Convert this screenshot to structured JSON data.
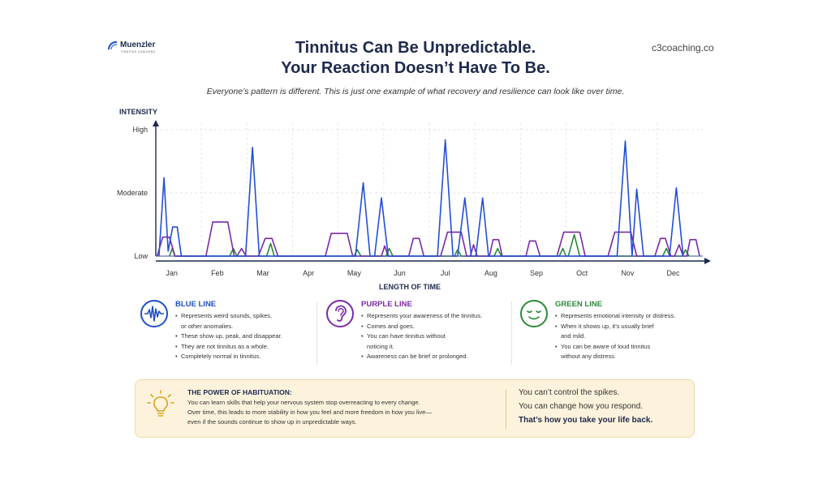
{
  "brand": {
    "name": "Muenzler",
    "tagline": "TINNITUS COACHING",
    "site": "c3coaching.co"
  },
  "header": {
    "title_line1": "Tinnitus Can Be Unpredictable.",
    "title_line2": "Your Reaction Doesn’t Have To Be.",
    "subtitle": "Everyone’s pattern is different. This is just one example of what recovery and resilience can look like over time."
  },
  "chart_data": {
    "type": "line",
    "ylabel": "INTENSITY",
    "xlabel": "LENGTH OF TIME",
    "y_ticks": [
      {
        "label": "High",
        "value": 10
      },
      {
        "label": "Moderate",
        "value": 5
      },
      {
        "label": "Low",
        "value": 0
      }
    ],
    "categories": [
      "Jan",
      "Feb",
      "Mar",
      "Apr",
      "May",
      "Jun",
      "Jul",
      "Aug",
      "Sep",
      "Oct",
      "Nov",
      "Dec"
    ],
    "xlim": [
      0,
      12
    ],
    "ylim": [
      0,
      10
    ],
    "grid": true,
    "series": [
      {
        "name": "BLUE LINE",
        "color": "#2350d4",
        "points": [
          [
            0.07,
            0
          ],
          [
            0.18,
            6.2
          ],
          [
            0.27,
            0.4
          ],
          [
            0.37,
            2.3
          ],
          [
            0.47,
            2.3
          ],
          [
            0.56,
            0
          ],
          [
            1.97,
            0
          ],
          [
            2.12,
            8.6
          ],
          [
            2.27,
            0
          ],
          [
            4.38,
            0
          ],
          [
            4.55,
            5.8
          ],
          [
            4.7,
            0
          ],
          [
            4.8,
            0
          ],
          [
            4.95,
            4.6
          ],
          [
            5.1,
            0
          ],
          [
            6.18,
            0
          ],
          [
            6.35,
            9.2
          ],
          [
            6.52,
            0
          ],
          [
            6.62,
            0
          ],
          [
            6.78,
            4.6
          ],
          [
            6.92,
            0
          ],
          [
            7.02,
            0
          ],
          [
            7.17,
            4.6
          ],
          [
            7.3,
            0
          ],
          [
            10.12,
            0
          ],
          [
            10.3,
            9.1
          ],
          [
            10.45,
            0
          ],
          [
            10.55,
            5.3
          ],
          [
            10.7,
            0
          ],
          [
            11.27,
            0
          ],
          [
            11.42,
            5.4
          ],
          [
            11.57,
            0
          ]
        ]
      },
      {
        "name": "PURPLE LINE",
        "color": "#7a2aa6",
        "points": [
          [
            0.03,
            0
          ],
          [
            0.15,
            1.5
          ],
          [
            0.3,
            1.5
          ],
          [
            0.42,
            0
          ],
          [
            1.1,
            0
          ],
          [
            1.25,
            2.7
          ],
          [
            1.58,
            2.7
          ],
          [
            1.72,
            0
          ],
          [
            1.78,
            0
          ],
          [
            1.88,
            0.6
          ],
          [
            1.98,
            0
          ],
          [
            2.25,
            0
          ],
          [
            2.4,
            1.4
          ],
          [
            2.55,
            1.4
          ],
          [
            2.68,
            0
          ],
          [
            3.72,
            0
          ],
          [
            3.85,
            1.8
          ],
          [
            4.2,
            1.8
          ],
          [
            4.32,
            0
          ],
          [
            4.95,
            0
          ],
          [
            5.02,
            0.8
          ],
          [
            5.1,
            0
          ],
          [
            5.55,
            0
          ],
          [
            5.65,
            1.4
          ],
          [
            5.78,
            1.4
          ],
          [
            5.88,
            0
          ],
          [
            6.25,
            0
          ],
          [
            6.4,
            1.9
          ],
          [
            6.7,
            1.9
          ],
          [
            6.82,
            0
          ],
          [
            6.9,
            0
          ],
          [
            6.97,
            0.9
          ],
          [
            7.05,
            0
          ],
          [
            7.32,
            0
          ],
          [
            7.4,
            1.3
          ],
          [
            7.52,
            1.3
          ],
          [
            7.6,
            0
          ],
          [
            8.12,
            0
          ],
          [
            8.2,
            1.2
          ],
          [
            8.33,
            1.2
          ],
          [
            8.43,
            0
          ],
          [
            8.8,
            0
          ],
          [
            8.95,
            1.9
          ],
          [
            9.3,
            1.9
          ],
          [
            9.42,
            0
          ],
          [
            9.92,
            0
          ],
          [
            10.07,
            1.9
          ],
          [
            10.42,
            1.9
          ],
          [
            10.55,
            0
          ],
          [
            10.95,
            0
          ],
          [
            11.07,
            1.4
          ],
          [
            11.18,
            1.4
          ],
          [
            11.3,
            0
          ],
          [
            11.38,
            0
          ],
          [
            11.48,
            0.9
          ],
          [
            11.57,
            0
          ],
          [
            11.65,
            0
          ],
          [
            11.72,
            1.3
          ],
          [
            11.85,
            1.3
          ],
          [
            11.93,
            0
          ]
        ]
      },
      {
        "name": "GREEN LINE",
        "color": "#2c8a3a",
        "points": [
          [
            0.3,
            0
          ],
          [
            0.36,
            0.6
          ],
          [
            0.42,
            0
          ],
          [
            1.62,
            0
          ],
          [
            1.7,
            0.6
          ],
          [
            1.78,
            0
          ],
          [
            2.43,
            0
          ],
          [
            2.52,
            1.0
          ],
          [
            2.6,
            0
          ],
          [
            4.35,
            0
          ],
          [
            4.42,
            0.5
          ],
          [
            4.5,
            0
          ],
          [
            5.05,
            0
          ],
          [
            5.12,
            0.6
          ],
          [
            5.2,
            0
          ],
          [
            6.55,
            0
          ],
          [
            6.62,
            0.5
          ],
          [
            6.7,
            0
          ],
          [
            7.42,
            0
          ],
          [
            7.5,
            0.6
          ],
          [
            7.58,
            0
          ],
          [
            8.85,
            0
          ],
          [
            8.93,
            0.6
          ],
          [
            9.0,
            0
          ],
          [
            9.05,
            0
          ],
          [
            9.18,
            1.7
          ],
          [
            9.3,
            0
          ],
          [
            11.12,
            0
          ],
          [
            11.2,
            0.6
          ],
          [
            11.28,
            0
          ],
          [
            11.55,
            0
          ],
          [
            11.62,
            0.5
          ],
          [
            11.7,
            0
          ]
        ]
      }
    ]
  },
  "legend": {
    "blue": {
      "title": "BLUE LINE",
      "color": "#1f4fc9",
      "icon": "waveform-icon",
      "items": [
        "Represents weird sounds, spikes,",
        "or other anomalies.",
        "These show up, peak, and disappear.",
        "They are not tinnitus as a whole.",
        "Completely normal in tinnitus."
      ]
    },
    "purple": {
      "title": "PURPLE LINE",
      "color": "#7a2aa6",
      "icon": "ear-icon",
      "items": [
        "Represents your awareness of the tinnitus.",
        "Comes and goes.",
        "You can have tinnitus without",
        "noticing it.",
        "Awareness can be brief or prolonged."
      ]
    },
    "green": {
      "title": "GREEN LINE",
      "color": "#2c8a3a",
      "icon": "calm-face-icon",
      "items": [
        "Represents emotional intensity or distress.",
        "When it shows up, it’s usually brief",
        "and mild.",
        "You can be aware of loud tinnitus",
        "without any distress."
      ]
    }
  },
  "banner": {
    "icon": "lightbulb-icon",
    "title": "THE POWER OF HABITUATION:",
    "text_lines": [
      "You can learn skills that help your nervous system stop overreacting to every change.",
      "Over time, this leads to more stability in how you feel and more freedom in how you live—",
      "even if the sounds continue to show up in unpredictable ways."
    ],
    "quote1": "You can’t control the spikes.",
    "quote2": "You can change how you respond.",
    "quote3": "That’s how you take your life back."
  }
}
